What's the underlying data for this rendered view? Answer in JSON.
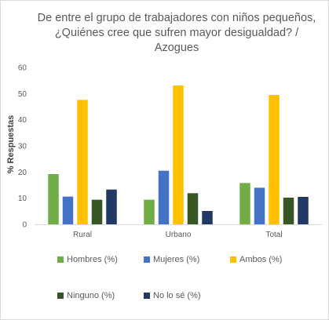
{
  "chart_data": {
    "type": "bar",
    "title_lines": [
      "De entre el grupo de trabajadores con niños pequeños,",
      "¿Quiénes cree que sufren mayor desigualdad? /",
      "Azogues"
    ],
    "ylabel": "% Respuestas",
    "xlabel": "",
    "ylim": [
      0,
      60
    ],
    "yticks": [
      "0",
      "10",
      "20",
      "30",
      "40",
      "50",
      "60"
    ],
    "grid": false,
    "legend_position": "bottom",
    "categories": [
      "Rural",
      "Urbano",
      "Total"
    ],
    "series": [
      {
        "name": "Hombres (%)",
        "color": "#70ad47",
        "values": [
          19.2,
          9.4,
          15.8
        ]
      },
      {
        "name": "Mujeres (%)",
        "color": "#4472c4",
        "values": [
          10.6,
          20.5,
          14.0
        ]
      },
      {
        "name": "Ambos (%)",
        "color": "#ffc000",
        "values": [
          47.6,
          53.1,
          49.5
        ]
      },
      {
        "name": "Ninguno (%)",
        "color": "#375623",
        "values": [
          9.4,
          11.9,
          10.2
        ]
      },
      {
        "name": "No lo sé (%)",
        "color": "#203864",
        "values": [
          13.3,
          5.1,
          10.5
        ]
      }
    ]
  }
}
